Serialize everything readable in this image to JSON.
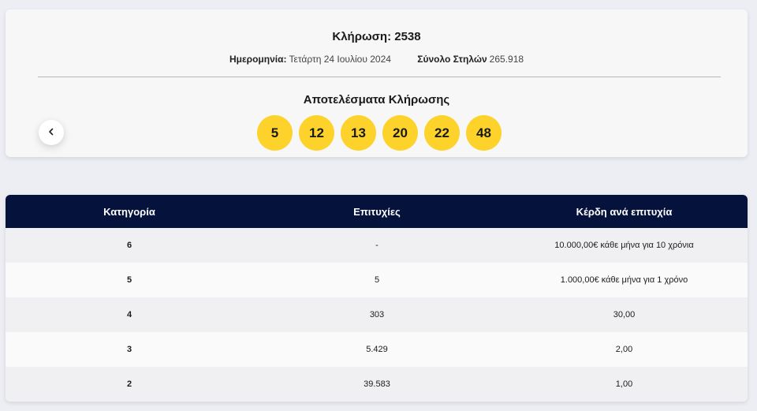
{
  "draw": {
    "title": "Κλήρωση: 2538",
    "date_label": "Ημερομηνία:",
    "date_value": "Τετάρτη 24 Ιουλίου 2024",
    "columns_label": "Σύνολο Στηλών",
    "columns_value": "265.918",
    "results_title": "Αποτελέσματα Κλήρωσης",
    "numbers": [
      "5",
      "12",
      "13",
      "20",
      "22",
      "48"
    ],
    "prev_icon": "chevron-left-icon"
  },
  "table": {
    "headers": [
      "Κατηγορία",
      "Επιτυχίες",
      "Κέρδη ανά επιτυχία"
    ],
    "rows": [
      {
        "category": "6",
        "winners": "-",
        "prize": "10.000,00€ κάθε μήνα για 10 χρόνια"
      },
      {
        "category": "5",
        "winners": "5",
        "prize": "1.000,00€ κάθε μήνα για 1 χρόνο"
      },
      {
        "category": "4",
        "winners": "303",
        "prize": "30,00"
      },
      {
        "category": "3",
        "winners": "5.429",
        "prize": "2,00"
      },
      {
        "category": "2",
        "winners": "39.583",
        "prize": "1,00"
      }
    ]
  },
  "colors": {
    "ball": "#fdd22a",
    "header_bg": "#05133c",
    "page_bg": "#eceef4"
  }
}
